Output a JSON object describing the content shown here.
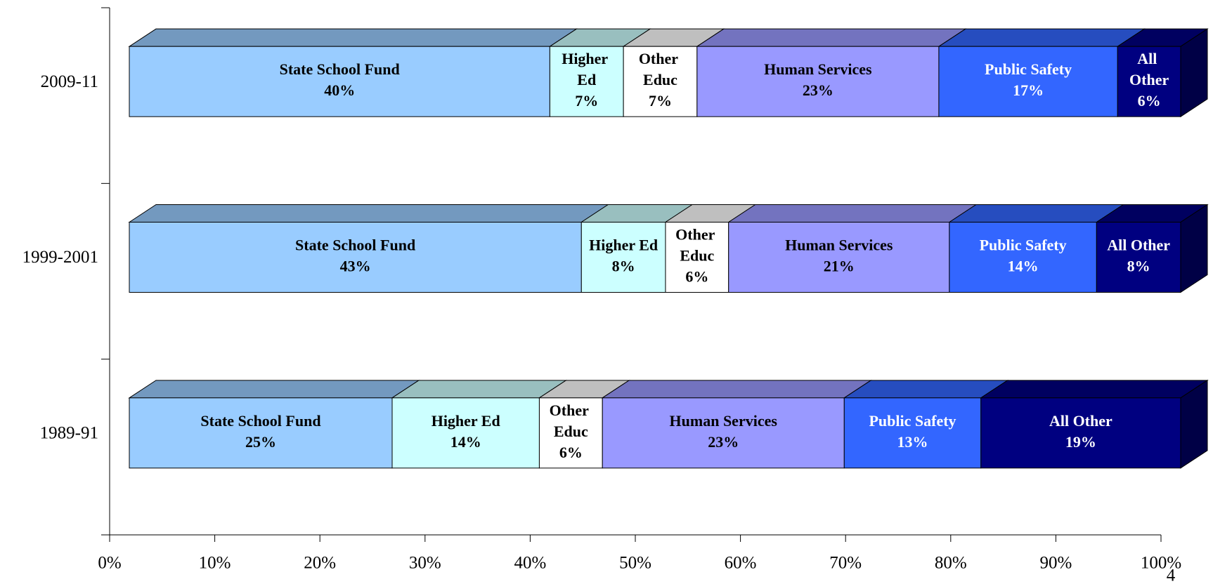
{
  "chart_data": {
    "type": "bar3d_stacked_horizontal",
    "categories": [
      "2009-11",
      "1999-2001",
      "1989-91"
    ],
    "series": [
      {
        "name": "State School Fund",
        "color": "#99ccff",
        "values": [
          40,
          43,
          25
        ],
        "value_labels": [
          "40%",
          "43%",
          "25%"
        ]
      },
      {
        "name": "Higher Ed",
        "color": "#ccffff",
        "values": [
          7,
          8,
          14
        ],
        "value_labels": [
          "7%",
          "8%",
          "14%"
        ]
      },
      {
        "name": "Other Educ",
        "color": "#ffffff",
        "values": [
          7,
          6,
          6
        ],
        "value_labels": [
          "7%",
          "6%",
          "6%"
        ]
      },
      {
        "name": "Human Services",
        "color": "#9999ff",
        "values": [
          23,
          21,
          23
        ],
        "value_labels": [
          "23%",
          "21%",
          "23%"
        ]
      },
      {
        "name": "Public Safety",
        "color": "#3366ff",
        "values": [
          17,
          14,
          13
        ],
        "value_labels": [
          "17%",
          "14%",
          "13%"
        ]
      },
      {
        "name": "All Other",
        "color": "#000080",
        "values": [
          6,
          8,
          19
        ],
        "value_labels": [
          "6%",
          "8%",
          "19%"
        ]
      }
    ],
    "xlim": [
      0,
      100
    ],
    "xticks": [
      {
        "value": 0,
        "label": "0%"
      },
      {
        "value": 10,
        "label": "10%"
      },
      {
        "value": 20,
        "label": "20%"
      },
      {
        "value": 30,
        "label": "30%"
      },
      {
        "value": 40,
        "label": "40%"
      },
      {
        "value": 50,
        "label": "50%"
      },
      {
        "value": 60,
        "label": "60%"
      },
      {
        "value": 70,
        "label": "70%"
      },
      {
        "value": 80,
        "label": "80%"
      },
      {
        "value": 90,
        "label": "90%"
      },
      {
        "value": 100,
        "label": "100%"
      }
    ]
  },
  "page_number": "4"
}
